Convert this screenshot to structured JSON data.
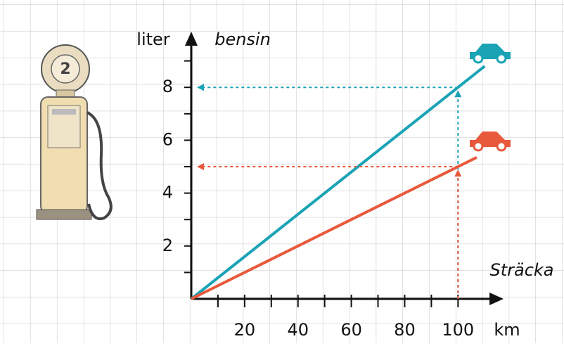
{
  "chart_data": {
    "type": "line",
    "y_label": "liter",
    "y_title": "bensin",
    "x_title": "Sträcka",
    "x_unit": "km",
    "series": [
      {
        "color": "#1aa3b5",
        "x": [
          0,
          100,
          110
        ],
        "values": [
          0,
          8,
          8.8
        ]
      },
      {
        "color": "#e8593c",
        "x": [
          0,
          100,
          107
        ],
        "values": [
          0,
          5,
          5.35
        ]
      }
    ],
    "xlim": [
      0,
      116
    ],
    "ylim": [
      0,
      10
    ],
    "xticks": [
      20,
      40,
      60,
      80,
      100
    ],
    "xminorticks": [
      10,
      30,
      50,
      70,
      90
    ],
    "yticks": [
      2,
      4,
      6,
      8
    ],
    "yminorticks": [
      1,
      3,
      5,
      7,
      9
    ]
  }
}
